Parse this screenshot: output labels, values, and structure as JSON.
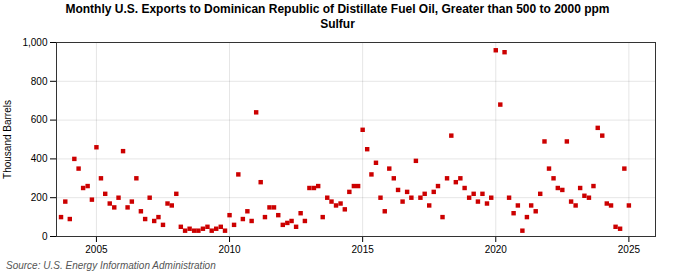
{
  "chart_data": {
    "type": "scatter",
    "title": "Monthly U.S. Exports to Dominican Republic of Distillate Fuel Oil, Greater than 500 to 2000 ppm\nSulfur",
    "ylabel": "Thousand Barrels",
    "source": "Source: U.S. Energy Information Administration",
    "color": "#cc0000",
    "marker": "square",
    "grid": true,
    "xlim": [
      2003.5,
      2026.0
    ],
    "xticks": [
      2005,
      2010,
      2015,
      2020,
      2025
    ],
    "ylim": [
      0,
      1000
    ],
    "yticks": [
      0,
      200,
      400,
      600,
      800,
      {
        "value": 1000,
        "label": "1,000"
      }
    ],
    "x": [
      2003.67,
      2003.83,
      2004.0,
      2004.17,
      2004.33,
      2004.5,
      2004.67,
      2004.83,
      2005.0,
      2005.17,
      2005.33,
      2005.5,
      2005.67,
      2005.83,
      2006.0,
      2006.17,
      2006.33,
      2006.5,
      2006.67,
      2006.83,
      2007.0,
      2007.17,
      2007.33,
      2007.5,
      2007.67,
      2007.83,
      2008.0,
      2008.17,
      2008.33,
      2008.5,
      2008.67,
      2008.83,
      2009.0,
      2009.17,
      2009.33,
      2009.5,
      2009.67,
      2009.83,
      2010.0,
      2010.17,
      2010.33,
      2010.5,
      2010.67,
      2010.83,
      2011.0,
      2011.17,
      2011.33,
      2011.5,
      2011.67,
      2011.83,
      2012.0,
      2012.17,
      2012.33,
      2012.5,
      2012.67,
      2012.83,
      2013.0,
      2013.17,
      2013.33,
      2013.5,
      2013.67,
      2013.83,
      2014.0,
      2014.17,
      2014.33,
      2014.5,
      2014.67,
      2014.83,
      2015.0,
      2015.17,
      2015.33,
      2015.5,
      2015.67,
      2015.83,
      2016.0,
      2016.17,
      2016.33,
      2016.5,
      2016.67,
      2016.83,
      2017.0,
      2017.17,
      2017.33,
      2017.5,
      2017.67,
      2017.83,
      2018.0,
      2018.17,
      2018.33,
      2018.5,
      2018.67,
      2018.83,
      2019.0,
      2019.17,
      2019.33,
      2019.5,
      2019.67,
      2019.83,
      2020.0,
      2020.17,
      2020.33,
      2020.5,
      2020.67,
      2020.83,
      2021.0,
      2021.17,
      2021.33,
      2021.5,
      2021.67,
      2021.83,
      2022.0,
      2022.17,
      2022.33,
      2022.5,
      2022.67,
      2022.83,
      2023.0,
      2023.17,
      2023.33,
      2023.5,
      2023.67,
      2023.83,
      2024.0,
      2024.17,
      2024.33,
      2024.5,
      2024.67,
      2024.83,
      2025.0
    ],
    "values": [
      100,
      180,
      90,
      400,
      350,
      250,
      260,
      190,
      460,
      300,
      220,
      170,
      150,
      200,
      440,
      150,
      180,
      300,
      130,
      90,
      200,
      80,
      100,
      60,
      170,
      160,
      220,
      50,
      30,
      40,
      30,
      30,
      40,
      50,
      30,
      40,
      50,
      30,
      110,
      60,
      320,
      90,
      130,
      80,
      640,
      280,
      100,
      150,
      150,
      110,
      60,
      70,
      80,
      50,
      120,
      80,
      250,
      250,
      260,
      100,
      200,
      180,
      160,
      170,
      140,
      230,
      260,
      260,
      550,
      450,
      320,
      380,
      200,
      130,
      350,
      300,
      240,
      180,
      230,
      200,
      390,
      200,
      220,
      160,
      230,
      260,
      100,
      300,
      520,
      280,
      300,
      250,
      200,
      220,
      180,
      220,
      170,
      200,
      960,
      680,
      950,
      200,
      120,
      160,
      30,
      100,
      160,
      130,
      220,
      490,
      350,
      300,
      250,
      240,
      490,
      180,
      160,
      250,
      210,
      200,
      260,
      560,
      520,
      170,
      160,
      50,
      40,
      350,
      160
    ]
  }
}
